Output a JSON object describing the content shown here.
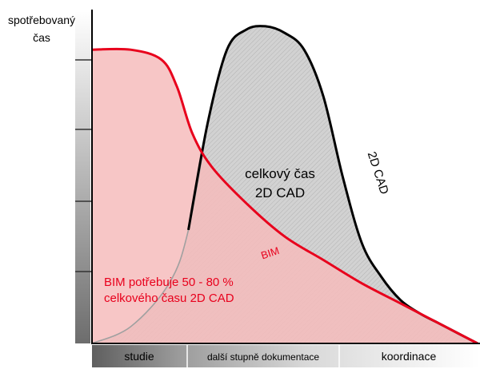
{
  "chart_data": {
    "type": "area",
    "title": "",
    "ylabel_lines": [
      "spotřebovaný",
      "čas"
    ],
    "xlabel": "",
    "phases": [
      "studie",
      "další stupně dokumentace",
      "koordinace"
    ],
    "xlim": [
      0,
      100
    ],
    "ylim": [
      0,
      100
    ],
    "series": [
      {
        "name": "2D CAD",
        "color": "#000000",
        "fill": "#d0d0d0",
        "x": [
          0,
          10,
          20,
          25,
          30,
          35,
          40,
          45,
          50,
          55,
          60,
          65,
          70,
          75,
          80,
          85,
          90,
          95,
          100
        ],
        "values": [
          0,
          5,
          18,
          34,
          66,
          88,
          94,
          95,
          93,
          88,
          74,
          50,
          30,
          20,
          13,
          9,
          6,
          3,
          0
        ]
      },
      {
        "name": "BIM",
        "color": "#e8001c",
        "fill": "#f6bcbc",
        "x": [
          0,
          10,
          18,
          22,
          26,
          31,
          40,
          50,
          60,
          70,
          80,
          90,
          100
        ],
        "values": [
          88,
          88,
          85,
          77,
          63,
          53,
          42,
          32,
          25,
          18,
          12,
          6,
          0
        ]
      }
    ],
    "annotations": {
      "cad_area_line1": "celkový čas",
      "cad_area_line2": "2D CAD",
      "cad_curve_label": "2D CAD",
      "bim_curve_label": "BIM",
      "bim_note_line1": "BIM potřebuje 50 - 80 %",
      "bim_note_line2": "celkového času 2D CAD"
    },
    "colors": {
      "bim_text": "#e8001c",
      "cad_text": "#000000"
    }
  }
}
